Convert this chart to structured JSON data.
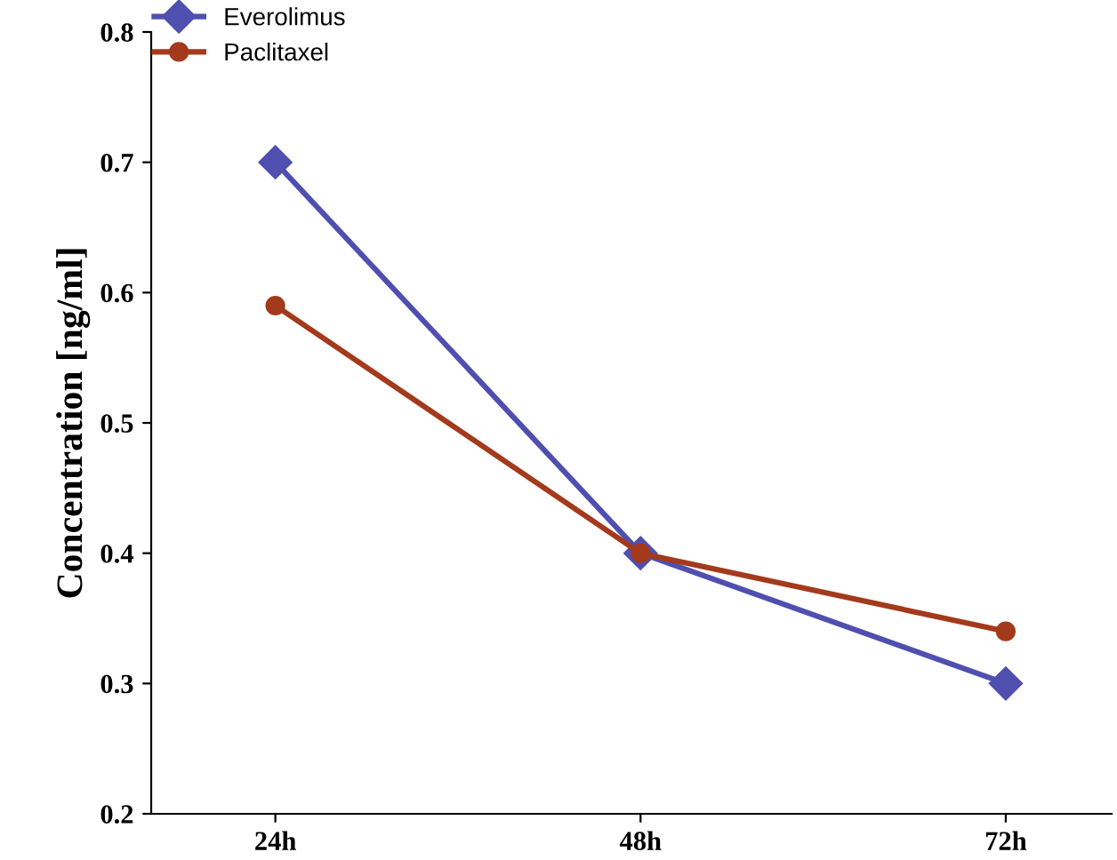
{
  "chart_data": {
    "type": "line",
    "ylabel": "Concentration [ng/ml]",
    "categories": [
      "24h",
      "48h",
      "72h"
    ],
    "series": [
      {
        "name": "Everolimus",
        "color": "#4f4fb0",
        "values": [
          0.7,
          0.4,
          0.3
        ],
        "marker": "diamond"
      },
      {
        "name": "Paclitaxel",
        "color": "#a33a1c",
        "values": [
          0.59,
          0.4,
          0.34
        ],
        "marker": "circle"
      }
    ],
    "ylim": [
      0.2,
      0.8
    ],
    "yticks": [
      0.2,
      0.3,
      0.4,
      0.5,
      0.6,
      0.7,
      0.8
    ],
    "grid": false,
    "legend": "top left",
    "line_style": "solid"
  }
}
